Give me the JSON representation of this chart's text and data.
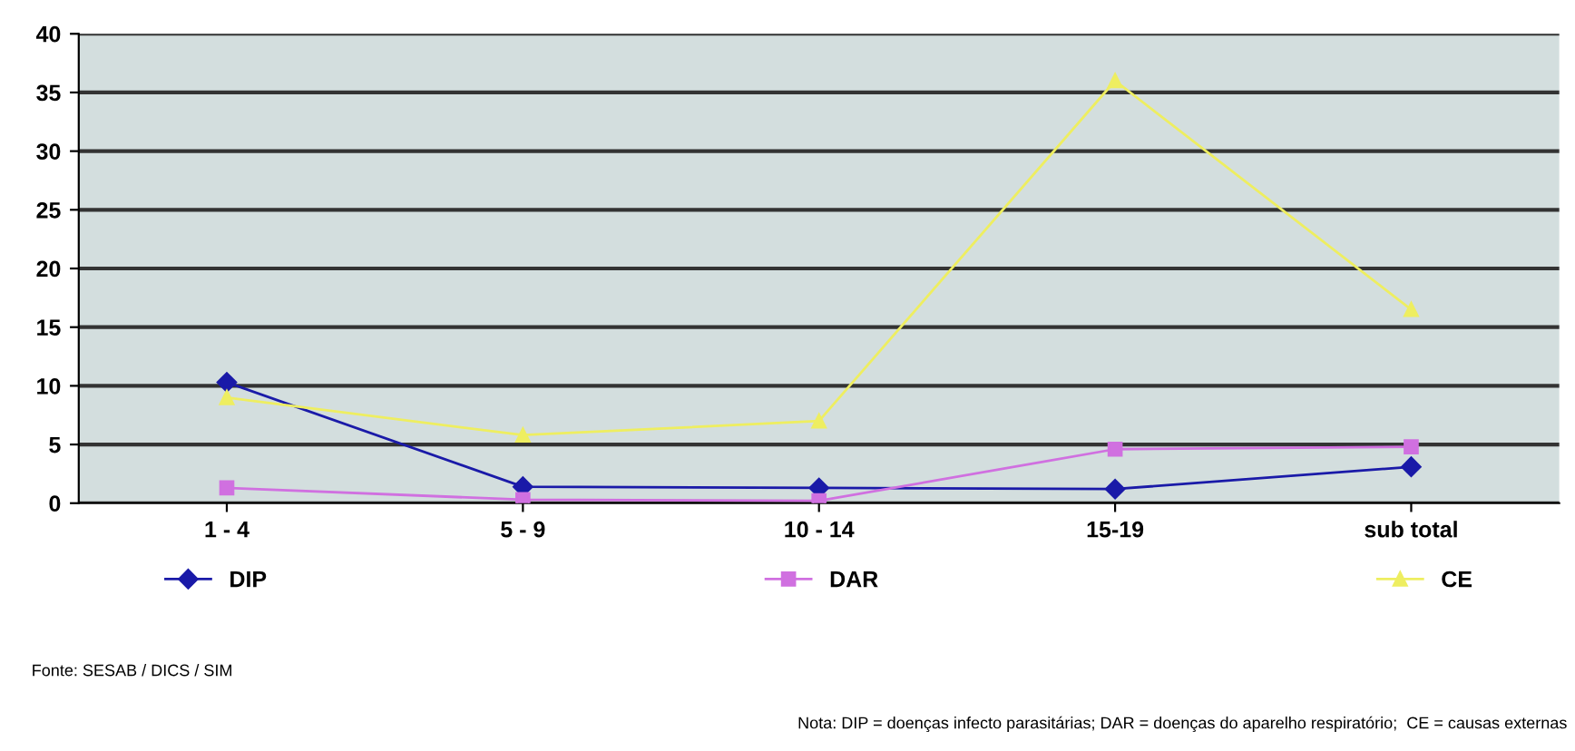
{
  "chart_data": {
    "type": "line",
    "categories": [
      "1 - 4",
      "5 - 9",
      "10 - 14",
      "15-19",
      "sub total"
    ],
    "series": [
      {
        "name": "DIP",
        "color": "#1a1aa8",
        "marker": "diamond",
        "values": [
          10.3,
          1.4,
          1.3,
          1.2,
          3.1
        ]
      },
      {
        "name": "DAR",
        "color": "#d070e0",
        "marker": "square",
        "values": [
          1.3,
          0.3,
          0.2,
          4.6,
          4.8
        ]
      },
      {
        "name": "CE",
        "color": "#eeee60",
        "marker": "triangle",
        "values": [
          9.0,
          5.8,
          7.0,
          36.0,
          16.5
        ]
      }
    ],
    "ylim": [
      0,
      40
    ],
    "yticks": [
      0,
      5,
      10,
      15,
      20,
      25,
      30,
      35,
      40
    ],
    "grid": "y",
    "legend": "bottom",
    "annotations": [
      "Fonte: SESAB / DICS / SIM",
      "Nota: DIP = doenças infecto parasitárias; DAR = doenças do aparelho respiratório;  CE = causas externas"
    ]
  }
}
